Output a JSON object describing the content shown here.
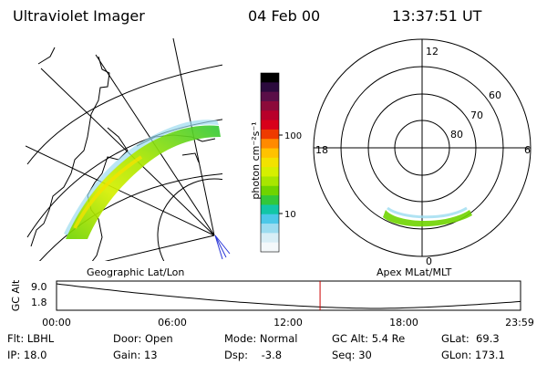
{
  "header": {
    "instrument": "Ultraviolet Imager",
    "date": "04 Feb 00",
    "time": "13:37:51 UT"
  },
  "geo_panel": {
    "label": "Geographic Lat/Lon"
  },
  "colorbar": {
    "unit_label": "photon cm⁻²s⁻¹",
    "ticks": [
      "100",
      "10"
    ],
    "colors": [
      "#000000",
      "#2b0a3d",
      "#5a0f48",
      "#8c0a3a",
      "#b8002a",
      "#d8001a",
      "#ee3a00",
      "#ff8a00",
      "#ffc200",
      "#f2e200",
      "#d6ef00",
      "#a8e600",
      "#6fd400",
      "#32c83a",
      "#12c6a6",
      "#4cc8e8",
      "#9cdcf0",
      "#d8eef6",
      "#f4f8fa"
    ]
  },
  "polar_panel": {
    "label": "Apex MLat/MLT",
    "mlt": [
      "12",
      "18",
      "6",
      "0"
    ],
    "lat": [
      "60",
      "70",
      "80"
    ]
  },
  "timeline": {
    "axis_label": "GC Alt",
    "y_ticks": [
      "9.0",
      "1.8"
    ],
    "x_ticks": [
      "00:00",
      "06:00",
      "12:00",
      "18:00",
      "23:59"
    ],
    "marker_hour": 13.63
  },
  "status": {
    "filter": "Flt: LBHL",
    "ip": "IP: 18.0",
    "door": "Door: Open",
    "gain": "Gain: 13",
    "mode": "Mode: Normal",
    "dsp": "Dsp:    -3.8",
    "gc_alt": "GC Alt: 5.4 Re",
    "seq": "Seq: 30",
    "glat": "GLat:  69.3",
    "glon": "GLon: 173.1"
  }
}
